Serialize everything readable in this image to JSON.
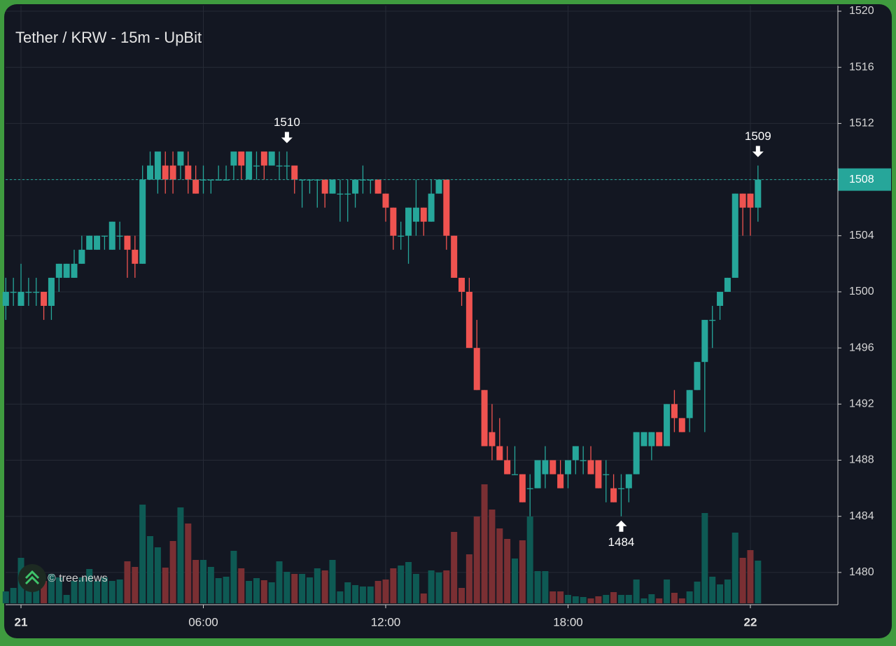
{
  "chart_data": {
    "type": "candlestick",
    "title": "Tether / KRW - 15m - UpBit",
    "watermark": "© tree.news",
    "x": [
      -0.5,
      -0.25,
      0,
      0.25,
      0.5,
      0.75,
      1,
      1.25,
      1.5,
      1.75,
      2,
      2.25,
      2.5,
      2.75,
      3,
      3.25,
      3.5,
      3.75,
      4,
      4.25,
      4.5,
      4.75,
      5,
      5.25,
      5.5,
      5.75,
      6,
      6.25,
      6.5,
      6.75,
      7,
      7.25,
      7.5,
      7.75,
      8,
      8.25,
      8.5,
      8.75,
      9,
      9.25,
      9.5,
      9.75,
      10,
      10.25,
      10.5,
      10.75,
      11,
      11.25,
      11.5,
      11.75,
      12,
      12.25,
      12.5,
      12.75,
      13,
      13.25,
      13.5,
      13.75,
      14,
      14.25,
      14.5,
      14.75,
      15,
      15.25,
      15.5,
      15.75,
      16,
      16.25,
      16.5,
      16.75,
      17,
      17.25,
      17.5,
      17.75,
      18,
      18.25,
      18.5,
      18.75,
      19,
      19.25,
      19.5,
      19.75,
      20,
      20.25,
      20.5,
      20.75,
      21,
      21.25,
      21.5,
      21.75,
      22,
      22.25,
      22.5,
      22.75,
      23,
      23.25,
      23.5,
      23.75,
      24,
      24.25
    ],
    "open": [
      1499,
      1500,
      1499,
      1500,
      1500,
      1500,
      1499,
      1501,
      1501,
      1501,
      1502,
      1503,
      1503,
      1504,
      1503,
      1504,
      1504,
      1503,
      1502,
      1508,
      1508,
      1509,
      1509,
      1509,
      1509,
      1508,
      1508,
      1508,
      1508,
      1508,
      1509,
      1510,
      1508,
      1509,
      1510,
      1509,
      1509,
      1509,
      1509,
      1508,
      1508,
      1508,
      1508,
      1507,
      1507,
      1507,
      1507,
      1508,
      1508,
      1508,
      1507,
      1506,
      1504,
      1504,
      1505,
      1506,
      1505,
      1507,
      1508,
      1504,
      1501,
      1500,
      1496,
      1493,
      1490,
      1489,
      1488,
      1487,
      1487,
      1486,
      1486,
      1487,
      1488,
      1487,
      1487,
      1488,
      1488,
      1488,
      1488,
      1487,
      1486,
      1486,
      1486,
      1487,
      1489,
      1489,
      1490,
      1489,
      1492,
      1491,
      1491,
      1493,
      1495,
      1498,
      1499,
      1500,
      1501,
      1507,
      1507,
      1506
    ],
    "high": [
      1501,
      1501,
      1502,
      1501,
      1501,
      1500,
      1501,
      1502,
      1502,
      1503,
      1504,
      1504,
      1504,
      1504,
      1505,
      1505,
      1504,
      1504,
      1509,
      1510,
      1510,
      1510,
      1510,
      1510,
      1510,
      1509,
      1509,
      1508,
      1509,
      1509,
      1510,
      1510,
      1510,
      1510,
      1510,
      1510,
      1510,
      1510,
      1509,
      1508,
      1508,
      1508,
      1508,
      1508,
      1508,
      1508,
      1508,
      1509,
      1508,
      1508,
      1507,
      1506,
      1505,
      1506,
      1508,
      1506,
      1508,
      1508,
      1508,
      1504,
      1501,
      1501,
      1498,
      1493,
      1492,
      1491,
      1489,
      1489,
      1487,
      1487,
      1488,
      1489,
      1488,
      1488,
      1488,
      1489,
      1489,
      1489,
      1488,
      1488,
      1487,
      1487,
      1487,
      1490,
      1490,
      1490,
      1490,
      1492,
      1493,
      1491,
      1493,
      1495,
      1498,
      1499,
      1500,
      1501,
      1507,
      1507,
      1507,
      1509
    ],
    "low": [
      1498,
      1499,
      1499,
      1499,
      1499,
      1498,
      1498,
      1500,
      1501,
      1501,
      1502,
      1503,
      1503,
      1503,
      1503,
      1503,
      1501,
      1501,
      1502,
      1508,
      1507,
      1507,
      1507,
      1508,
      1507,
      1507,
      1507,
      1507,
      1508,
      1508,
      1508,
      1508,
      1508,
      1508,
      1508,
      1509,
      1508,
      1508,
      1507,
      1506,
      1507,
      1506,
      1506,
      1507,
      1505,
      1505,
      1506,
      1507,
      1507,
      1507,
      1505,
      1503,
      1503,
      1502,
      1504,
      1504,
      1505,
      1507,
      1503,
      1501,
      1499,
      1496,
      1493,
      1489,
      1488,
      1488,
      1487,
      1487,
      1485,
      1484,
      1486,
      1486,
      1487,
      1486,
      1486,
      1487,
      1487,
      1487,
      1486,
      1485,
      1485,
      1484,
      1485,
      1487,
      1489,
      1488,
      1489,
      1489,
      1490,
      1490,
      1490,
      1493,
      1490,
      1496,
      1498,
      1500,
      1501,
      1504,
      1504,
      1505
    ],
    "close": [
      1500,
      1500,
      1500,
      1500,
      1500,
      1499,
      1501,
      1502,
      1502,
      1502,
      1503,
      1504,
      1504,
      1504,
      1505,
      1504,
      1503,
      1502,
      1508,
      1509,
      1510,
      1508,
      1508,
      1510,
      1508,
      1507,
      1508,
      1508,
      1508,
      1508,
      1510,
      1509,
      1510,
      1509,
      1509,
      1510,
      1509,
      1509,
      1508,
      1508,
      1508,
      1508,
      1507,
      1508,
      1507,
      1507,
      1508,
      1508,
      1508,
      1507,
      1506,
      1504,
      1504,
      1506,
      1506,
      1505,
      1507,
      1508,
      1504,
      1501,
      1500,
      1496,
      1493,
      1489,
      1489,
      1488,
      1487,
      1487,
      1485,
      1486,
      1488,
      1488,
      1487,
      1486,
      1488,
      1489,
      1488,
      1487,
      1486,
      1487,
      1485,
      1486,
      1487,
      1490,
      1490,
      1490,
      1489,
      1492,
      1491,
      1490,
      1493,
      1495,
      1498,
      1498,
      1500,
      1501,
      1507,
      1506,
      1506,
      1508
    ],
    "volume": [
      17,
      22,
      65,
      32,
      22,
      32,
      42,
      37,
      12,
      32,
      37,
      49,
      32,
      37,
      32,
      34,
      60,
      52,
      141,
      96,
      80,
      51,
      89,
      137,
      114,
      62,
      62,
      52,
      36,
      38,
      75,
      50,
      32,
      36,
      33,
      30,
      60,
      45,
      42,
      42,
      37,
      50,
      47,
      62,
      17,
      30,
      26,
      24,
      24,
      32,
      34,
      50,
      54,
      59,
      42,
      14,
      47,
      44,
      47,
      102,
      22,
      70,
      124,
      170,
      134,
      107,
      92,
      64,
      90,
      124,
      46,
      46,
      17,
      17,
      12,
      10,
      9,
      7,
      10,
      12,
      16,
      12,
      12,
      34,
      7,
      13,
      7,
      34,
      15,
      7,
      17,
      31,
      129,
      38,
      27,
      34,
      101,
      65,
      76,
      61
    ],
    "up_color": "#26a69a",
    "down_color": "#ef5350",
    "up_volume_color": "#0e5a54",
    "down_volume_color": "#7a2f33",
    "last_price": 1508,
    "annotations": [
      {
        "value": 1510,
        "x": 8.75,
        "direction": "down"
      },
      {
        "value": 1509,
        "x": 24.25,
        "direction": "down"
      },
      {
        "value": 1484,
        "x": 19.75,
        "direction": "up"
      }
    ],
    "xlim": [
      -0.507,
      26.88
    ],
    "xticks": [
      {
        "value": 0,
        "label": "21"
      },
      {
        "value": 6,
        "label": "06:00"
      },
      {
        "value": 12,
        "label": "12:00"
      },
      {
        "value": 18,
        "label": "18:00"
      },
      {
        "value": 24,
        "label": "22"
      }
    ],
    "ylim": [
      1477.8,
      1520.4
    ],
    "yticks": [
      1480,
      1484,
      1488,
      1492,
      1496,
      1500,
      1504,
      1508,
      1512,
      1516,
      1520
    ],
    "grid": true
  }
}
